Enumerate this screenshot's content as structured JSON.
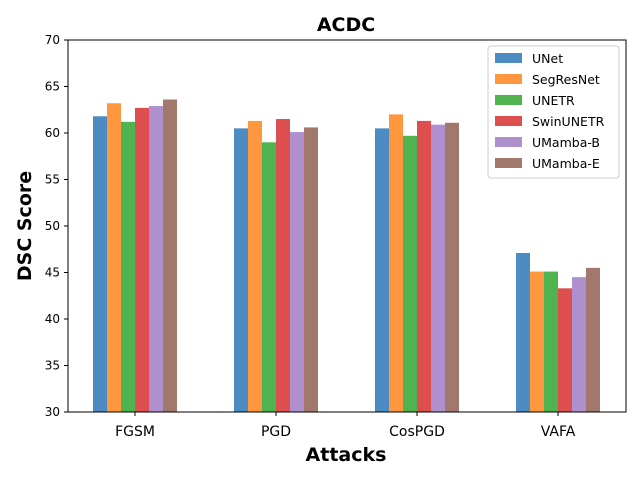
{
  "chart_data": {
    "type": "bar",
    "title": "ACDC",
    "xlabel": "Attacks",
    "ylabel": "DSC Score",
    "categories": [
      "FGSM",
      "PGD",
      "CosPGD",
      "VAFA"
    ],
    "ylim": [
      30,
      70
    ],
    "yticks": [
      30,
      35,
      40,
      45,
      50,
      55,
      60,
      65,
      70
    ],
    "legend_position": "top-right",
    "grid": false,
    "series": [
      {
        "name": "UNet",
        "color": "#3a7fbd",
        "values": [
          61.8,
          60.5,
          60.5,
          47.1
        ]
      },
      {
        "name": "SegResNet",
        "color": "#ff8c2a",
        "values": [
          63.2,
          61.3,
          62.0,
          45.1
        ]
      },
      {
        "name": "UNETR",
        "color": "#3cab3c",
        "values": [
          61.2,
          59.0,
          59.7,
          45.1
        ]
      },
      {
        "name": "SwinUNETR",
        "color": "#d93b3b",
        "values": [
          62.7,
          61.5,
          61.3,
          43.3
        ]
      },
      {
        "name": "UMamba-B",
        "color": "#a584c9",
        "values": [
          62.9,
          60.1,
          60.9,
          44.5
        ]
      },
      {
        "name": "UMamba-E",
        "color": "#98695c",
        "values": [
          63.6,
          60.6,
          61.1,
          45.5
        ]
      }
    ]
  }
}
